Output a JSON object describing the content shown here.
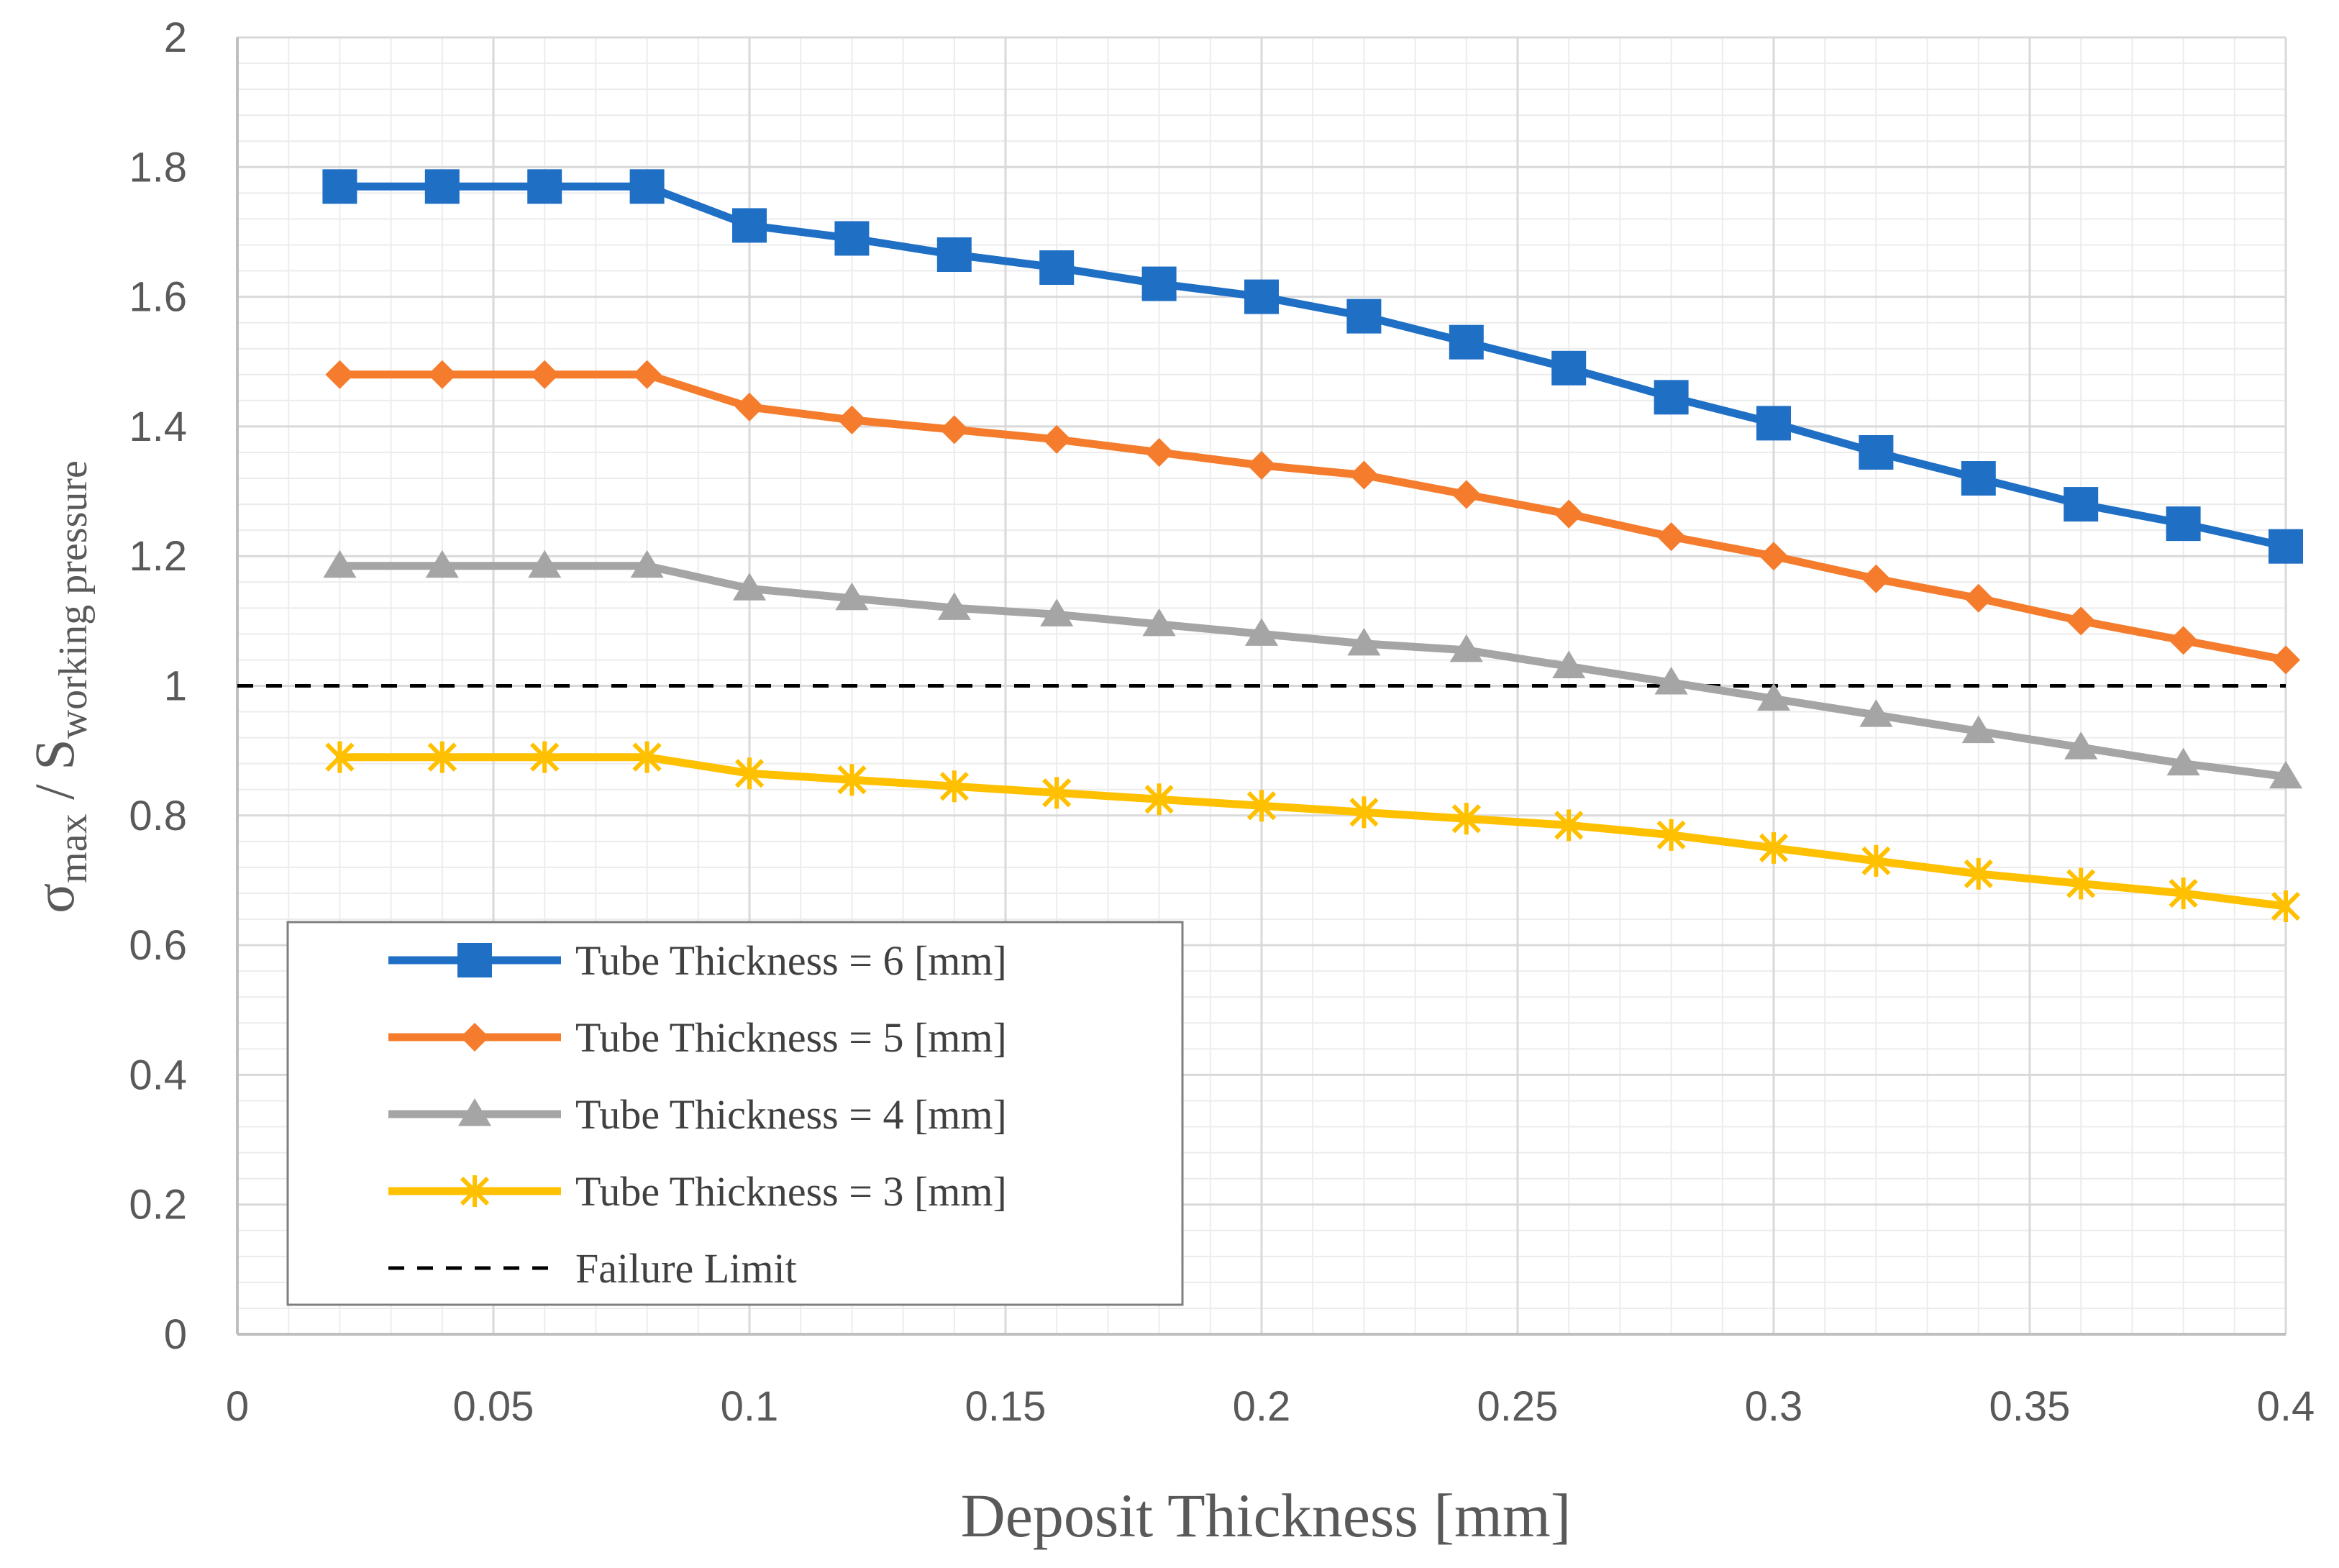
{
  "chart_data": {
    "type": "line",
    "xlabel": "Deposit Thickness [mm]",
    "ylabel": {
      "sigma": "σ",
      "sigma_sub": "max",
      "slash": " / S",
      "s_sub": "working pressure"
    },
    "xlim": [
      0,
      0.4
    ],
    "ylim": [
      0,
      2
    ],
    "x_ticks": [
      0,
      0.05,
      0.1,
      0.15,
      0.2,
      0.25,
      0.3,
      0.35,
      0.4
    ],
    "x_tick_labels": [
      "0",
      "0.05",
      "0.1",
      "0.15",
      "0.2",
      "0.25",
      "0.3",
      "0.35",
      "0.4"
    ],
    "y_ticks": [
      0,
      0.2,
      0.4,
      0.6,
      0.8,
      1,
      1.2,
      1.4,
      1.6,
      1.8,
      2
    ],
    "y_tick_labels": [
      "0",
      "0.2",
      "0.4",
      "0.6",
      "0.8",
      "1",
      "1.2",
      "1.4",
      "1.6",
      "1.8",
      "2"
    ],
    "grid": true,
    "legend_position": "bottom-left",
    "x": [
      0.02,
      0.04,
      0.06,
      0.08,
      0.1,
      0.12,
      0.14,
      0.16,
      0.18,
      0.2,
      0.22,
      0.24,
      0.26,
      0.28,
      0.3,
      0.32,
      0.34,
      0.36,
      0.38,
      0.4
    ],
    "series": [
      {
        "name": "Tube Thickness = 6 [mm]",
        "color": "#1f6fc5",
        "marker": "square",
        "values": [
          1.77,
          1.77,
          1.77,
          1.77,
          1.71,
          1.69,
          1.665,
          1.645,
          1.62,
          1.6,
          1.57,
          1.53,
          1.49,
          1.445,
          1.405,
          1.36,
          1.32,
          1.28,
          1.25,
          1.215
        ]
      },
      {
        "name": "Tube Thickness = 5 [mm]",
        "color": "#f47c2c",
        "marker": "diamond",
        "values": [
          1.48,
          1.48,
          1.48,
          1.48,
          1.43,
          1.41,
          1.395,
          1.38,
          1.36,
          1.34,
          1.325,
          1.295,
          1.265,
          1.23,
          1.2,
          1.165,
          1.135,
          1.1,
          1.07,
          1.04
        ]
      },
      {
        "name": "Tube Thickness = 4 [mm]",
        "color": "#a5a5a5",
        "marker": "triangle",
        "values": [
          1.185,
          1.185,
          1.185,
          1.185,
          1.15,
          1.135,
          1.12,
          1.11,
          1.095,
          1.08,
          1.065,
          1.055,
          1.03,
          1.005,
          0.98,
          0.955,
          0.93,
          0.905,
          0.88,
          0.86
        ]
      },
      {
        "name": "Tube Thickness = 3 [mm]",
        "color": "#ffc000",
        "marker": "star",
        "values": [
          0.89,
          0.89,
          0.89,
          0.89,
          0.865,
          0.855,
          0.845,
          0.835,
          0.825,
          0.815,
          0.805,
          0.795,
          0.785,
          0.77,
          0.75,
          0.73,
          0.71,
          0.695,
          0.68,
          0.66
        ]
      }
    ],
    "reference_line": {
      "name": "Failure Limit",
      "y": 1,
      "color": "#000000",
      "style": "dashed"
    }
  }
}
